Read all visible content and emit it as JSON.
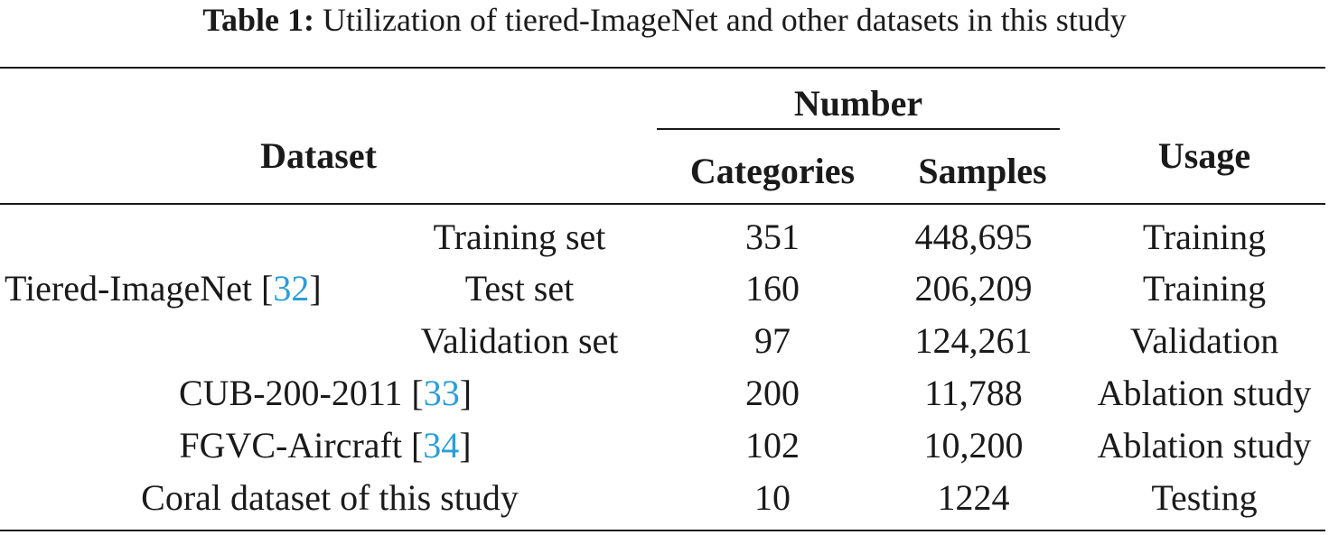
{
  "caption": {
    "label": "Table 1:",
    "text": "Utilization of tiered-ImageNet and other datasets in this study"
  },
  "header": {
    "dataset": "Dataset",
    "number": "Number",
    "categories": "Categories",
    "samples": "Samples",
    "usage": "Usage"
  },
  "tiered": {
    "name": "Tiered-ImageNet",
    "ref": "32",
    "rows": [
      {
        "subset": "Training set",
        "categories": "351",
        "samples": "448,695",
        "usage": "Training"
      },
      {
        "subset": "Test set",
        "categories": "160",
        "samples": "206,209",
        "usage": "Training"
      },
      {
        "subset": "Validation set",
        "categories": "97",
        "samples": "124,261",
        "usage": "Validation"
      }
    ]
  },
  "rows": [
    {
      "dataset": "CUB-200-2011",
      "ref": "33",
      "categories": "200",
      "samples": "11,788",
      "usage": "Ablation study"
    },
    {
      "dataset": "FGVC-Aircraft",
      "ref": "34",
      "categories": "102",
      "samples": "10,200",
      "usage": "Ablation study"
    },
    {
      "dataset": "Coral dataset of this study",
      "categories": "10",
      "samples": "1224",
      "usage": "Testing"
    }
  ]
}
